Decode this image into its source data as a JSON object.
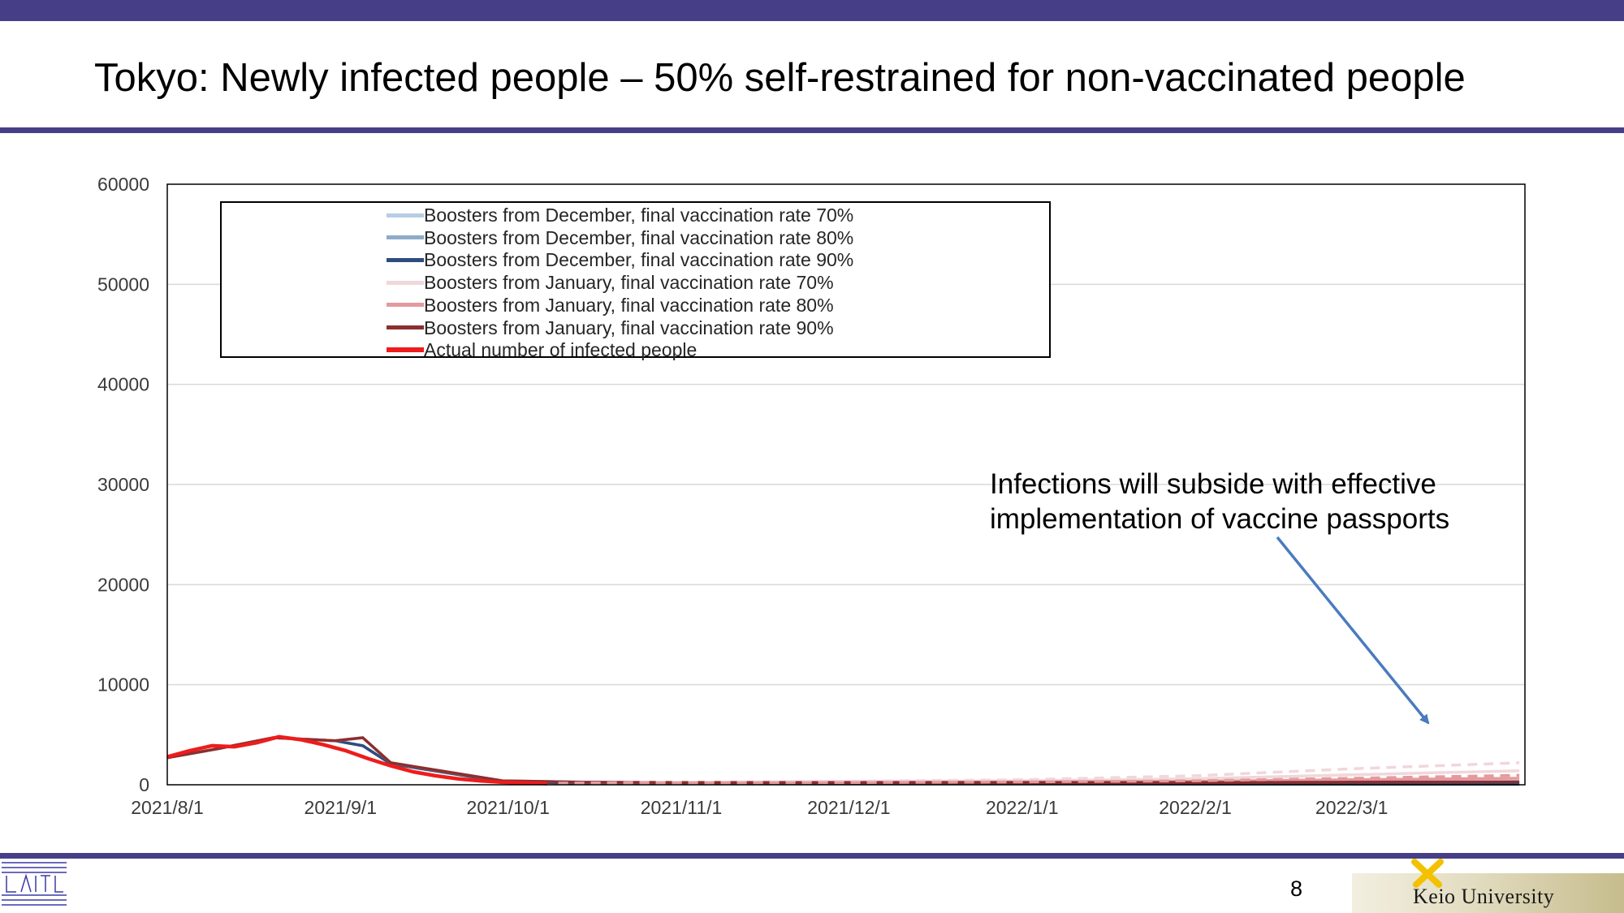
{
  "slide": {
    "title": "Tokyo: Newly infected people – 50% self-restrained for non-vaccinated people",
    "page_number": "8",
    "footer_logo_text": "Keio University"
  },
  "annotation": {
    "line1": "Infections will subside with effective",
    "line2": "implementation of vaccine passports"
  },
  "colors": {
    "brand_bar": "#463f88",
    "annotation_arrow": "#4a7bbf"
  },
  "chart_data": {
    "type": "line",
    "title": "",
    "xlabel": "",
    "ylabel": "",
    "ylim": [
      0,
      60000
    ],
    "yticks": [
      0,
      10000,
      20000,
      30000,
      40000,
      50000,
      60000
    ],
    "xlim": [
      "2021-08-01",
      "2022-04-01"
    ],
    "xtick_labels": [
      "2021/8/1",
      "2021/9/1",
      "2021/10/1",
      "2021/11/1",
      "2021/12/1",
      "2022/1/1",
      "2022/2/1",
      "2022/3/1"
    ],
    "xtick_dates": [
      "2021-08-01",
      "2021-09-01",
      "2021-10-01",
      "2021-11-01",
      "2021-12-01",
      "2022-01-01",
      "2022-02-01",
      "2022-03-01"
    ],
    "grid": "horizontal",
    "legend_position": "top-left inside",
    "series": [
      {
        "name": "Boosters from December, final vaccination rate 70%",
        "color": "#b8cde4",
        "style": "solid",
        "x": [
          "2021-08-01",
          "2021-08-10",
          "2021-08-20",
          "2021-08-31",
          "2021-09-05",
          "2021-09-10",
          "2021-09-20",
          "2021-09-30",
          "2021-10-15",
          "2021-11-01",
          "2021-12-01",
          "2022-01-01",
          "2022-02-01",
          "2022-03-01",
          "2022-03-31"
        ],
        "y": [
          2700,
          3600,
          4700,
          4400,
          3900,
          2100,
          1200,
          300,
          150,
          150,
          150,
          120,
          100,
          100,
          100
        ]
      },
      {
        "name": "Boosters from December, final vaccination rate 80%",
        "color": "#8eabc9",
        "style": "solid",
        "x": [
          "2021-08-01",
          "2021-08-10",
          "2021-08-20",
          "2021-08-31",
          "2021-09-05",
          "2021-09-10",
          "2021-09-20",
          "2021-09-30",
          "2021-10-15",
          "2021-11-01",
          "2021-12-01",
          "2022-01-01",
          "2022-02-01",
          "2022-03-01",
          "2022-03-31"
        ],
        "y": [
          2700,
          3600,
          4700,
          4400,
          3900,
          2100,
          1200,
          300,
          150,
          140,
          130,
          110,
          90,
          80,
          80
        ]
      },
      {
        "name": "Boosters from December, final vaccination rate 90%",
        "color": "#2e4d7e",
        "style": "solid",
        "x": [
          "2021-08-01",
          "2021-08-10",
          "2021-08-20",
          "2021-08-31",
          "2021-09-05",
          "2021-09-10",
          "2021-09-20",
          "2021-09-30",
          "2021-10-15",
          "2021-11-01",
          "2021-12-01",
          "2022-01-01",
          "2022-02-01",
          "2022-03-01",
          "2022-03-31"
        ],
        "y": [
          2700,
          3600,
          4700,
          4400,
          3900,
          2100,
          1200,
          300,
          150,
          130,
          120,
          100,
          80,
          70,
          60
        ]
      },
      {
        "name": "Boosters from January, final vaccination rate 70%",
        "color": "#f0d7da",
        "style": "solid",
        "x": [
          "2021-08-01",
          "2021-08-10",
          "2021-08-20",
          "2021-08-31",
          "2021-09-05",
          "2021-09-10",
          "2021-09-20",
          "2021-09-30",
          "2021-10-15",
          "2021-11-01",
          "2021-12-01",
          "2022-01-01",
          "2022-02-01",
          "2022-03-01",
          "2022-03-31"
        ],
        "y": [
          2700,
          3600,
          4700,
          4400,
          4700,
          2200,
          1300,
          400,
          250,
          250,
          300,
          400,
          600,
          1000,
          1400
        ]
      },
      {
        "name": "Boosters from January, final vaccination rate 80%",
        "color": "#e39a9e",
        "style": "solid",
        "x": [
          "2021-08-01",
          "2021-08-10",
          "2021-08-20",
          "2021-08-31",
          "2021-09-05",
          "2021-09-10",
          "2021-09-20",
          "2021-09-30",
          "2021-10-15",
          "2021-11-01",
          "2021-12-01",
          "2022-01-01",
          "2022-02-01",
          "2022-03-01",
          "2022-03-31"
        ],
        "y": [
          2700,
          3600,
          4700,
          4400,
          4700,
          2200,
          1300,
          400,
          250,
          230,
          250,
          280,
          350,
          500,
          650
        ]
      },
      {
        "name": "Boosters from January, final vaccination rate 90%",
        "color": "#8b2f2f",
        "style": "solid",
        "x": [
          "2021-08-01",
          "2021-08-10",
          "2021-08-20",
          "2021-08-31",
          "2021-09-05",
          "2021-09-10",
          "2021-09-20",
          "2021-09-30",
          "2021-10-15",
          "2021-11-01",
          "2021-12-01",
          "2022-01-01",
          "2022-02-01",
          "2022-03-01",
          "2022-03-31"
        ],
        "y": [
          2700,
          3600,
          4700,
          4400,
          4700,
          2200,
          1300,
          400,
          250,
          220,
          220,
          220,
          230,
          260,
          300
        ]
      },
      {
        "name": "Actual number of infected people",
        "color": "#ee1c1c",
        "style": "solid",
        "x": [
          "2021-08-01",
          "2021-08-05",
          "2021-08-09",
          "2021-08-13",
          "2021-08-17",
          "2021-08-21",
          "2021-08-25",
          "2021-08-29",
          "2021-09-02",
          "2021-09-06",
          "2021-09-10",
          "2021-09-14",
          "2021-09-18",
          "2021-09-22",
          "2021-09-26",
          "2021-09-30",
          "2021-10-04",
          "2021-10-08"
        ],
        "y": [
          2800,
          3400,
          3900,
          3800,
          4200,
          4800,
          4500,
          4000,
          3400,
          2600,
          1900,
          1300,
          900,
          600,
          400,
          250,
          180,
          120
        ]
      },
      {
        "name": "",
        "color": "#f0d7da",
        "style": "dashed",
        "x": [
          "2021-10-10",
          "2021-11-01",
          "2021-12-01",
          "2022-01-01",
          "2022-02-01",
          "2022-03-01",
          "2022-03-31"
        ],
        "y": [
          150,
          250,
          350,
          500,
          900,
          1600,
          2200
        ]
      },
      {
        "name": "",
        "color": "#e39a9e",
        "style": "dashed",
        "x": [
          "2021-10-10",
          "2021-11-01",
          "2021-12-01",
          "2022-01-01",
          "2022-02-01",
          "2022-03-01",
          "2022-03-31"
        ],
        "y": [
          150,
          180,
          220,
          280,
          400,
          650,
          950
        ]
      }
    ]
  }
}
